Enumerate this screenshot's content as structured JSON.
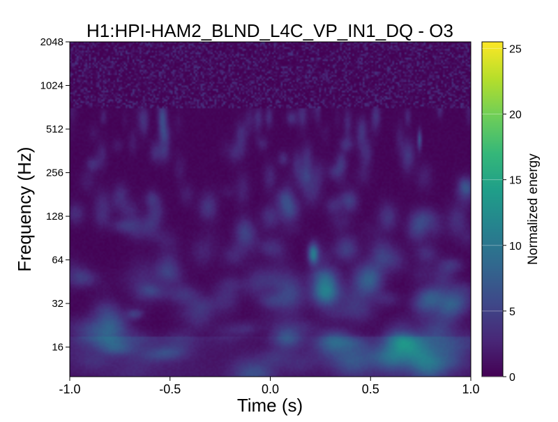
{
  "chart_data": {
    "type": "heatmap",
    "title": "H1:HPI-HAM2_BLND_L4C_VP_IN1_DQ - O3",
    "xlabel": "Time (s)",
    "ylabel": "Frequency (Hz)",
    "colorbar_label": "Normalized energy",
    "x_range": [
      -1.0,
      1.0
    ],
    "y_range": [
      10,
      2048
    ],
    "y_scale": "log2",
    "x_ticks": [
      "-1.0",
      "-0.5",
      "0.0",
      "0.5",
      "1.0"
    ],
    "x_tick_values": [
      -1.0,
      -0.5,
      0.0,
      0.5,
      1.0
    ],
    "y_ticks": [
      "16",
      "32",
      "64",
      "128",
      "256",
      "512",
      "1024",
      "2048"
    ],
    "y_tick_values": [
      16,
      32,
      64,
      128,
      256,
      512,
      1024,
      2048
    ],
    "colorbar_range": [
      0,
      25.5
    ],
    "colorbar_ticks": [
      "0",
      "5",
      "10",
      "15",
      "20",
      "25"
    ],
    "colorbar_tick_values": [
      0,
      5,
      10,
      15,
      20,
      25
    ],
    "colormap": "viridis",
    "colormap_stops": [
      "#440154",
      "#482878",
      "#3e4989",
      "#31688e",
      "#26828e",
      "#1f9e89",
      "#35b779",
      "#6ece58",
      "#b5de2b",
      "#fde725"
    ],
    "grid": false
  }
}
